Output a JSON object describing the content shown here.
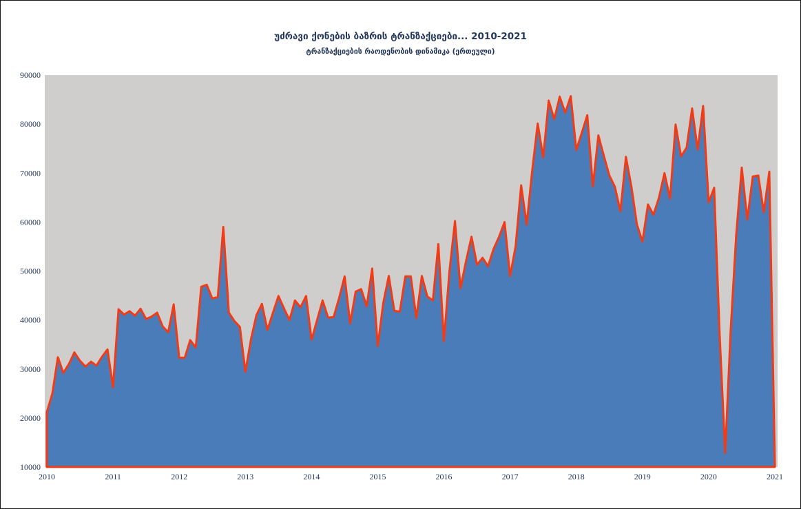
{
  "header": {
    "title": "უძრავი ქონების ბაზრის ტრანზაქციები... 2010-2021",
    "subtitle": "ტრანზაქციების რაოდენობის დინამიკა (ერთეული)"
  },
  "chart_data": {
    "type": "area",
    "title": "უძრავი ქონების ბაზრის ტრანზაქციები... 2010-2021",
    "subtitle": "ტრანზაქციების რაოდენობის დინამიკა (ერთეული)",
    "x_unit": "month",
    "x_range": [
      "2010-01",
      "2021-01"
    ],
    "x_tick_labels": [
      "2010",
      "2011",
      "2012",
      "2013",
      "2014",
      "2015",
      "2016",
      "2017",
      "2018",
      "2019",
      "2020",
      "2021"
    ],
    "y_ticks": [
      10000,
      20000,
      30000,
      40000,
      50000,
      60000,
      70000,
      80000,
      90000
    ],
    "ylim": [
      10000,
      90000
    ],
    "grid": false,
    "legend": "none",
    "plot_bg": "#d0cdcd",
    "area_fill": "#4b7cba",
    "line_color": "#f03c16",
    "label_color": "#24375c",
    "series": [
      {
        "name": "transactions",
        "values": [
          21200,
          25000,
          32400,
          29200,
          31000,
          33400,
          31700,
          30500,
          31500,
          30700,
          32500,
          34000,
          26300,
          42200,
          41100,
          41800,
          40900,
          42300,
          40200,
          40700,
          41500,
          38700,
          37500,
          43200,
          32300,
          32300,
          35900,
          34400,
          46800,
          47200,
          44400,
          44700,
          59000,
          41500,
          39800,
          38600,
          29400,
          36000,
          41000,
          43300,
          38000,
          41500,
          44900,
          42400,
          40000,
          44000,
          42600,
          44900,
          36000,
          40000,
          44000,
          40500,
          40600,
          44500,
          48900,
          39300,
          45800,
          46300,
          42800,
          50500,
          34700,
          43500,
          49000,
          41900,
          41700,
          48900,
          48900,
          40400,
          49000,
          44800,
          44000,
          55500,
          35700,
          50000,
          60200,
          46500,
          52000,
          57000,
          51300,
          52700,
          51000,
          54500,
          57000,
          60000,
          49000,
          55000,
          67500,
          59500,
          70500,
          80100,
          73200,
          84800,
          81000,
          85600,
          82300,
          85700,
          74700,
          78200,
          81800,
          67300,
          77700,
          73500,
          69500,
          67200,
          62200,
          73300,
          67200,
          59500,
          56000,
          63600,
          61500,
          65000,
          70000,
          64800,
          79900,
          73400,
          75200,
          83200,
          74800,
          83700,
          64000,
          67000,
          37000,
          12900,
          38000,
          57400,
          71100,
          60500,
          69300,
          69500,
          62000,
          70300,
          10900
        ]
      }
    ]
  }
}
